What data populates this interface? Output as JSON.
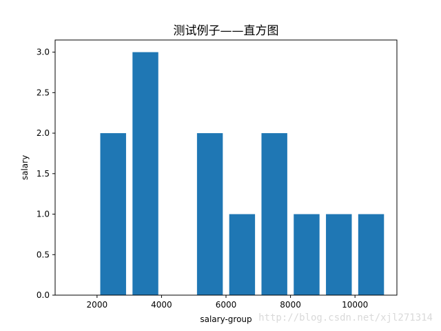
{
  "chart_data": {
    "type": "bar",
    "title": "测试例子——直方图",
    "xlabel": "salary-group",
    "ylabel": "salary",
    "x": [
      2500,
      3500,
      5500,
      6500,
      7500,
      8500,
      9500,
      10500
    ],
    "values": [
      2,
      3,
      2,
      1,
      2,
      1,
      1,
      1
    ],
    "bar_width": 800,
    "xlim": [
      700,
      11300
    ],
    "ylim": [
      0,
      3.15
    ],
    "xticks": [
      2000,
      4000,
      6000,
      8000,
      10000
    ],
    "xtick_labels": [
      "2000",
      "4000",
      "6000",
      "8000",
      "10000"
    ],
    "yticks": [
      0,
      0.5,
      1,
      1.5,
      2,
      2.5,
      3
    ],
    "ytick_labels": [
      "0.0",
      "0.5",
      "1.0",
      "1.5",
      "2.0",
      "2.5",
      "3.0"
    ],
    "bar_color": "#1f77b4",
    "grid": false,
    "legend": null
  },
  "watermark": "http://blog.csdn.net/xjl271314"
}
